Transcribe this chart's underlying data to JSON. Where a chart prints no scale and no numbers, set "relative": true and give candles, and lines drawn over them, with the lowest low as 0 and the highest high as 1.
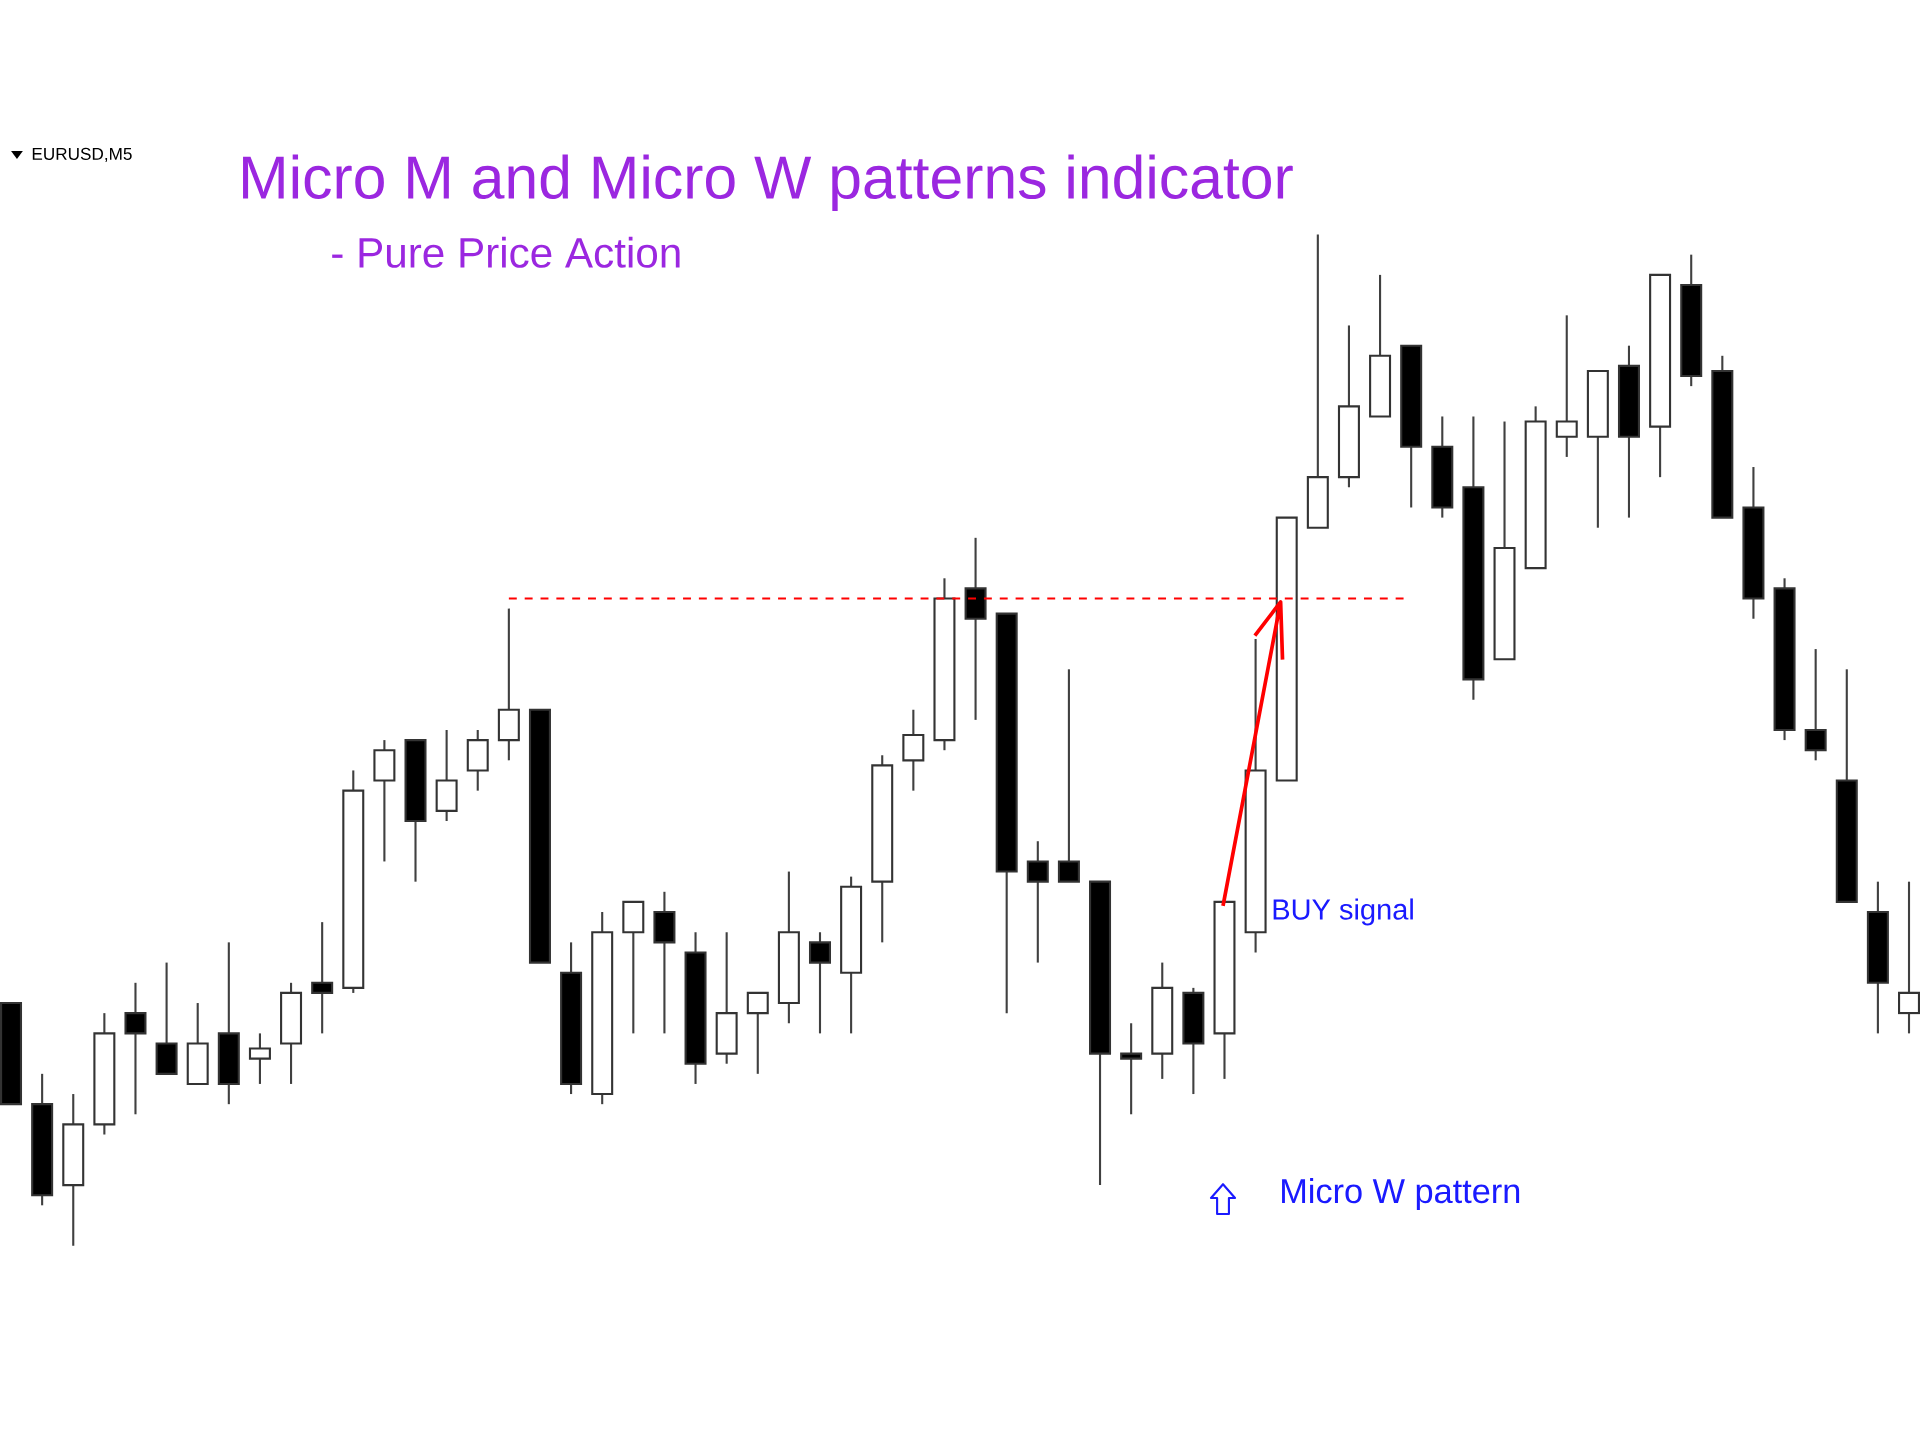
{
  "chart_data": {
    "type": "candlestick",
    "title": "Micro M and Micro W patterns indicator",
    "subtitle": "- Pure Price Action",
    "relative": true,
    "annotations": [
      "EURUSD,M5",
      "BUY signal",
      "Micro W pattern"
    ],
    "categories": [
      null,
      null,
      null,
      null,
      null,
      null,
      null,
      null,
      null,
      null,
      null,
      null,
      null,
      null,
      null,
      null,
      null,
      null,
      null,
      null,
      null,
      null,
      null,
      null,
      null,
      null,
      null,
      null,
      null,
      null,
      null,
      null,
      null,
      null,
      null,
      null,
      null,
      null,
      null,
      null,
      null,
      null,
      null,
      null,
      null,
      null,
      null,
      null,
      null,
      null,
      null,
      null,
      null,
      null,
      null,
      null,
      null,
      null,
      null,
      null,
      null,
      null
    ],
    "ohlc": [
      [
        0.24,
        0.24,
        0.14,
        0.14
      ],
      [
        0.14,
        0.17,
        0.04,
        0.05
      ],
      [
        0.06,
        0.15,
        0,
        0.12
      ],
      [
        0.12,
        0.23,
        0.11,
        0.21
      ],
      [
        0.23,
        0.26,
        0.13,
        0.21
      ],
      [
        0.2,
        0.28,
        0.17,
        0.17
      ],
      [
        0.16,
        0.24,
        0.16,
        0.2
      ],
      [
        0.21,
        0.3,
        0.14,
        0.16
      ],
      [
        0.185,
        0.21,
        0.16,
        0.195
      ],
      [
        0.2,
        0.26,
        0.16,
        0.25
      ],
      [
        0.26,
        0.32,
        0.21,
        0.25
      ],
      [
        0.255,
        0.47,
        0.25,
        0.45
      ],
      [
        0.46,
        0.5,
        0.38,
        0.49
      ],
      [
        0.5,
        0.5,
        0.36,
        0.42
      ],
      [
        0.43,
        0.51,
        0.42,
        0.46
      ],
      [
        0.47,
        0.51,
        0.45,
        0.5
      ],
      [
        0.5,
        0.63,
        0.48,
        0.53
      ],
      [
        0.53,
        0.53,
        0.28,
        0.28
      ],
      [
        0.27,
        0.3,
        0.15,
        0.16
      ],
      [
        0.15,
        0.33,
        0.14,
        0.31
      ],
      [
        0.31,
        0.34,
        0.21,
        0.34
      ],
      [
        0.33,
        0.35,
        0.21,
        0.3
      ],
      [
        0.29,
        0.31,
        0.16,
        0.18
      ],
      [
        0.19,
        0.31,
        0.18,
        0.23
      ],
      [
        0.23,
        0.25,
        0.17,
        0.25
      ],
      [
        0.24,
        0.37,
        0.22,
        0.31
      ],
      [
        0.3,
        0.31,
        0.21,
        0.28
      ],
      [
        0.27,
        0.365,
        0.21,
        0.355
      ],
      [
        0.36,
        0.485,
        0.3,
        0.475
      ],
      [
        0.48,
        0.53,
        0.45,
        0.505
      ],
      [
        0.5,
        0.66,
        0.49,
        0.64
      ],
      [
        0.65,
        0.7,
        0.52,
        0.62
      ],
      [
        0.625,
        0.625,
        0.23,
        0.37
      ],
      [
        0.38,
        0.4,
        0.28,
        0.36
      ],
      [
        0.38,
        0.57,
        0.36,
        0.36
      ],
      [
        0.36,
        0.36,
        0.06,
        0.19
      ],
      [
        0.19,
        0.22,
        0.13,
        0.185
      ],
      [
        0.19,
        0.28,
        0.165,
        0.255
      ],
      [
        0.25,
        0.255,
        0.15,
        0.2
      ],
      [
        0.21,
        0.34,
        0.165,
        0.34
      ],
      [
        0.31,
        0.6,
        0.29,
        0.47
      ],
      [
        0.46,
        0.72,
        0.46,
        0.72
      ],
      [
        0.71,
        1,
        0.71,
        0.76
      ],
      [
        0.76,
        0.91,
        0.75,
        0.83
      ],
      [
        0.82,
        0.96,
        0.82,
        0.88
      ],
      [
        0.89,
        0.89,
        0.73,
        0.79
      ],
      [
        0.79,
        0.82,
        0.72,
        0.73
      ],
      [
        0.75,
        0.82,
        0.54,
        0.56
      ],
      [
        0.58,
        0.815,
        0.58,
        0.69
      ],
      [
        0.67,
        0.83,
        0.67,
        0.815
      ],
      [
        0.8,
        0.92,
        0.78,
        0.815
      ],
      [
        0.8,
        0.865,
        0.71,
        0.865
      ],
      [
        0.87,
        0.89,
        0.72,
        0.8
      ],
      [
        0.81,
        0.96,
        0.76,
        0.96
      ],
      [
        0.95,
        0.98,
        0.85,
        0.86
      ],
      [
        0.865,
        0.88,
        0.72,
        0.72
      ],
      [
        0.73,
        0.77,
        0.62,
        0.64
      ],
      [
        0.65,
        0.66,
        0.5,
        0.51
      ],
      [
        0.51,
        0.59,
        0.48,
        0.49
      ],
      [
        0.46,
        0.57,
        0.34,
        0.34
      ],
      [
        0.33,
        0.36,
        0.21,
        0.26
      ],
      [
        0.23,
        0.36,
        0.21,
        0.25
      ]
    ],
    "series": [
      {
        "type": "line",
        "color": "#ff0000",
        "line_style": "dashed",
        "values": [
          null,
          null,
          null,
          null,
          null,
          null,
          null,
          null,
          null,
          null,
          null,
          null,
          null,
          null,
          null,
          null,
          0.64,
          0.64,
          0.64,
          0.64,
          0.64,
          0.64,
          0.64,
          0.64,
          0.64,
          0.64,
          0.64,
          0.64,
          0.64,
          0.64,
          0.64,
          0.64,
          0.64,
          0.64,
          0.64,
          0.64,
          0.64,
          0.64,
          0.64,
          0.64,
          0.64,
          0.64,
          0.64,
          0.64,
          0.64,
          0.64,
          null,
          null,
          null,
          null,
          null,
          null,
          null,
          null,
          null,
          null,
          null,
          null,
          null,
          null,
          null,
          null
        ]
      }
    ]
  }
}
